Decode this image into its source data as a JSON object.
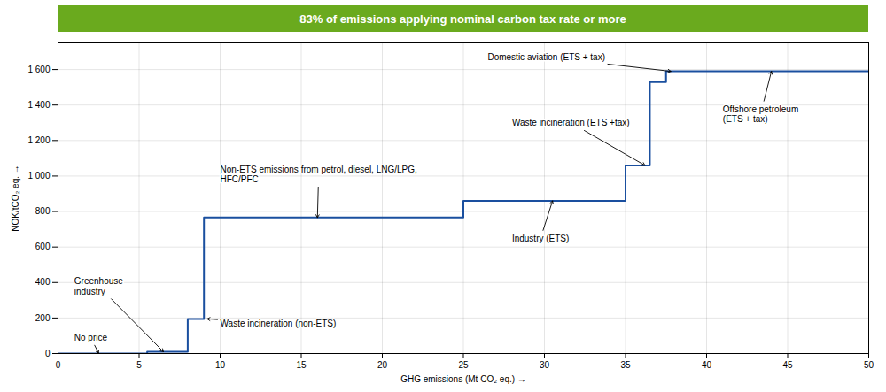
{
  "chart_data": {
    "type": "line",
    "title": "83%  of emissions applying nominal carbon tax rate or more",
    "xlabel": "GHG emissions (Mt CO₂ eq.)",
    "ylabel": "NOK/tCO₂ eq.",
    "x": [
      0,
      5.5,
      5.5,
      8.0,
      8.0,
      9.0,
      9.0,
      25.0,
      25.0,
      35.0,
      35.0,
      36.5,
      36.5,
      37.5,
      37.5,
      38.5,
      38.5,
      50.0
    ],
    "values": [
      0,
      0,
      10,
      10,
      195,
      195,
      766,
      766,
      860,
      860,
      1060,
      1060,
      1530,
      1530,
      1590,
      1590,
      1590,
      1590
    ],
    "color": "#1a4f9f",
    "xlim": [
      0,
      50
    ],
    "ylim": [
      0,
      1750
    ],
    "xticks": [
      0,
      5,
      10,
      15,
      20,
      25,
      30,
      35,
      40,
      45,
      50
    ],
    "yticks": [
      0,
      200,
      400,
      600,
      800,
      {
        "value": 1000,
        "label": "1 000"
      },
      {
        "value": 1200,
        "label": "1 200"
      },
      {
        "value": 1400,
        "label": "1 400"
      },
      {
        "value": 1600,
        "label": "1 600"
      }
    ],
    "grid": true,
    "annotations": [
      {
        "text": "No price",
        "xy": [
          2.5,
          2
        ],
        "xytext": [
          1.0,
          90
        ]
      },
      {
        "text": "Greenhouse\nindustry",
        "xy": [
          6.5,
          10
        ],
        "xytext": [
          1.0,
          380
        ]
      },
      {
        "text": "Waste incineration (non-ETS)",
        "xy": [
          9.2,
          195
        ],
        "xytext": [
          10.0,
          170
        ]
      },
      {
        "text": "Non-ETS emissions from petrol, diesel, LNG/LPG,\nHFC/PFC",
        "xy": [
          16.0,
          766
        ],
        "xytext": [
          10.0,
          1010
        ]
      },
      {
        "text": "Domestic aviation (ETS + tax)",
        "xy": [
          37.8,
          1590
        ],
        "xytext": [
          26.5,
          1670
        ]
      },
      {
        "text": "Waste incineration (ETS +tax)",
        "xy": [
          36.2,
          1060
        ],
        "xytext": [
          28.0,
          1300
        ]
      },
      {
        "text": "Industry (ETS)",
        "xy": [
          30.5,
          860
        ],
        "xytext": [
          28.0,
          650
        ]
      },
      {
        "text": "Offshore petroleum\n(ETS + tax)",
        "xy": [
          44.0,
          1590
        ],
        "xytext": [
          41.0,
          1350
        ]
      }
    ]
  }
}
